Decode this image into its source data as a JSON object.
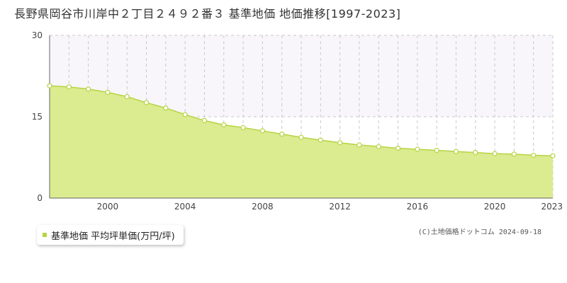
{
  "chart_data": {
    "type": "area",
    "title": "長野県岡谷市川岸中２丁目２４９２番３ 基準地価 地価推移[1997-2023]",
    "xlabel": "",
    "ylabel": "",
    "xlim": [
      1997,
      2023
    ],
    "ylim": [
      0,
      30
    ],
    "x_ticks": [
      "2000",
      "2004",
      "2008",
      "2012",
      "2016",
      "2020",
      "2023"
    ],
    "y_ticks": [
      "0",
      "15",
      "30"
    ],
    "grid": true,
    "legend_position": "bottom-left",
    "series": [
      {
        "name": "基準地価 平均坪単価(万円/坪)",
        "x": [
          1997,
          1998,
          1999,
          2000,
          2001,
          2002,
          2003,
          2004,
          2005,
          2006,
          2007,
          2008,
          2009,
          2010,
          2011,
          2012,
          2013,
          2014,
          2015,
          2016,
          2017,
          2018,
          2019,
          2020,
          2021,
          2022,
          2023
        ],
        "values": [
          20.7,
          20.5,
          20.1,
          19.5,
          18.7,
          17.6,
          16.6,
          15.4,
          14.3,
          13.5,
          13.0,
          12.4,
          11.8,
          11.2,
          10.7,
          10.2,
          9.8,
          9.5,
          9.2,
          9.0,
          8.8,
          8.6,
          8.4,
          8.2,
          8.1,
          7.9,
          7.8
        ]
      }
    ]
  },
  "colors": {
    "fill": "#dbeb8f",
    "line": "#b5d442",
    "marker_fill": "#ffffff",
    "grid": "#c8c8c8",
    "upper_band": "#f8f6fb"
  },
  "legend": {
    "label": "基準地価 平均坪単価(万円/坪)"
  },
  "credit": "(C)土地価格ドットコム 2024-09-18"
}
